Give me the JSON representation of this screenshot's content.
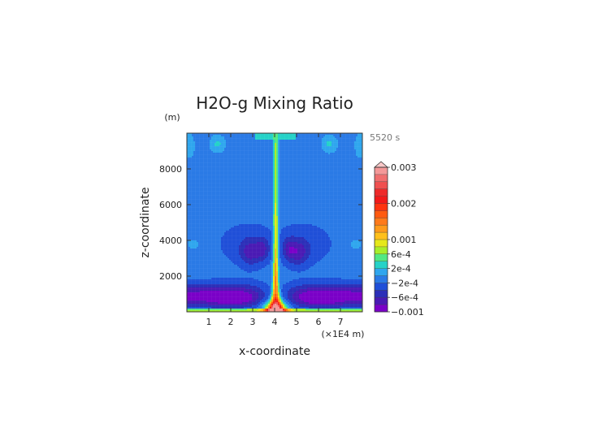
{
  "chart_data": {
    "type": "heatmap",
    "title": "H2O-g Mixing Ratio",
    "xlabel": "x-coordinate",
    "ylabel": "z-coordinate",
    "z_units": "(m)",
    "x_units": "(×1E4 m)",
    "time_label": "5520 s",
    "xlim": [
      0,
      8
    ],
    "ylim": [
      0,
      10000
    ],
    "x_ticks": [
      1,
      2,
      3,
      4,
      5,
      6,
      7
    ],
    "y_ticks": [
      2000,
      4000,
      6000,
      8000
    ],
    "colorbar": {
      "levels": [
        -0.001,
        -0.0008,
        -0.0006,
        -0.0004,
        -0.0002,
        0,
        0.0002,
        0.0004,
        0.0006,
        0.0008,
        0.001,
        0.0012,
        0.0014,
        0.0016,
        0.0018,
        0.002,
        0.0022,
        0.0024,
        0.0026,
        0.0028,
        0.003
      ],
      "colors": [
        "#7a00c8",
        "#4a1ab4",
        "#2c2fb8",
        "#1f4fd8",
        "#2a7ae6",
        "#2fa6ee",
        "#25d2c8",
        "#52e884",
        "#a8ee2a",
        "#e6e81a",
        "#ffc01a",
        "#ff9a1a",
        "#ff7a1a",
        "#ff5a10",
        "#ff3410",
        "#f21a1a",
        "#ee2a2a",
        "#f05050",
        "#f06e6e",
        "#f49898"
      ],
      "labels": [
        {
          "value": 0.003,
          "text": "0.003"
        },
        {
          "value": 0.002,
          "text": "0.002"
        },
        {
          "value": 0.001,
          "text": "0.001"
        },
        {
          "value": 0.0006,
          "text": "6e-4"
        },
        {
          "value": 0.0002,
          "text": "2e-4"
        },
        {
          "value": -0.0002,
          "text": "−2e-4"
        },
        {
          "value": -0.0006,
          "text": "−6e-4"
        },
        {
          "value": -0.001,
          "text": "−0.001"
        }
      ]
    },
    "field_description": "Background about -1e-4; central plume near x=4 with maxima ~0.002 near surface; low-level negative band (-6e-4 to -1e-3) near z=500-1500 m; mid-level negative lobes near z=3000-4000 m; positive patches near the top."
  }
}
